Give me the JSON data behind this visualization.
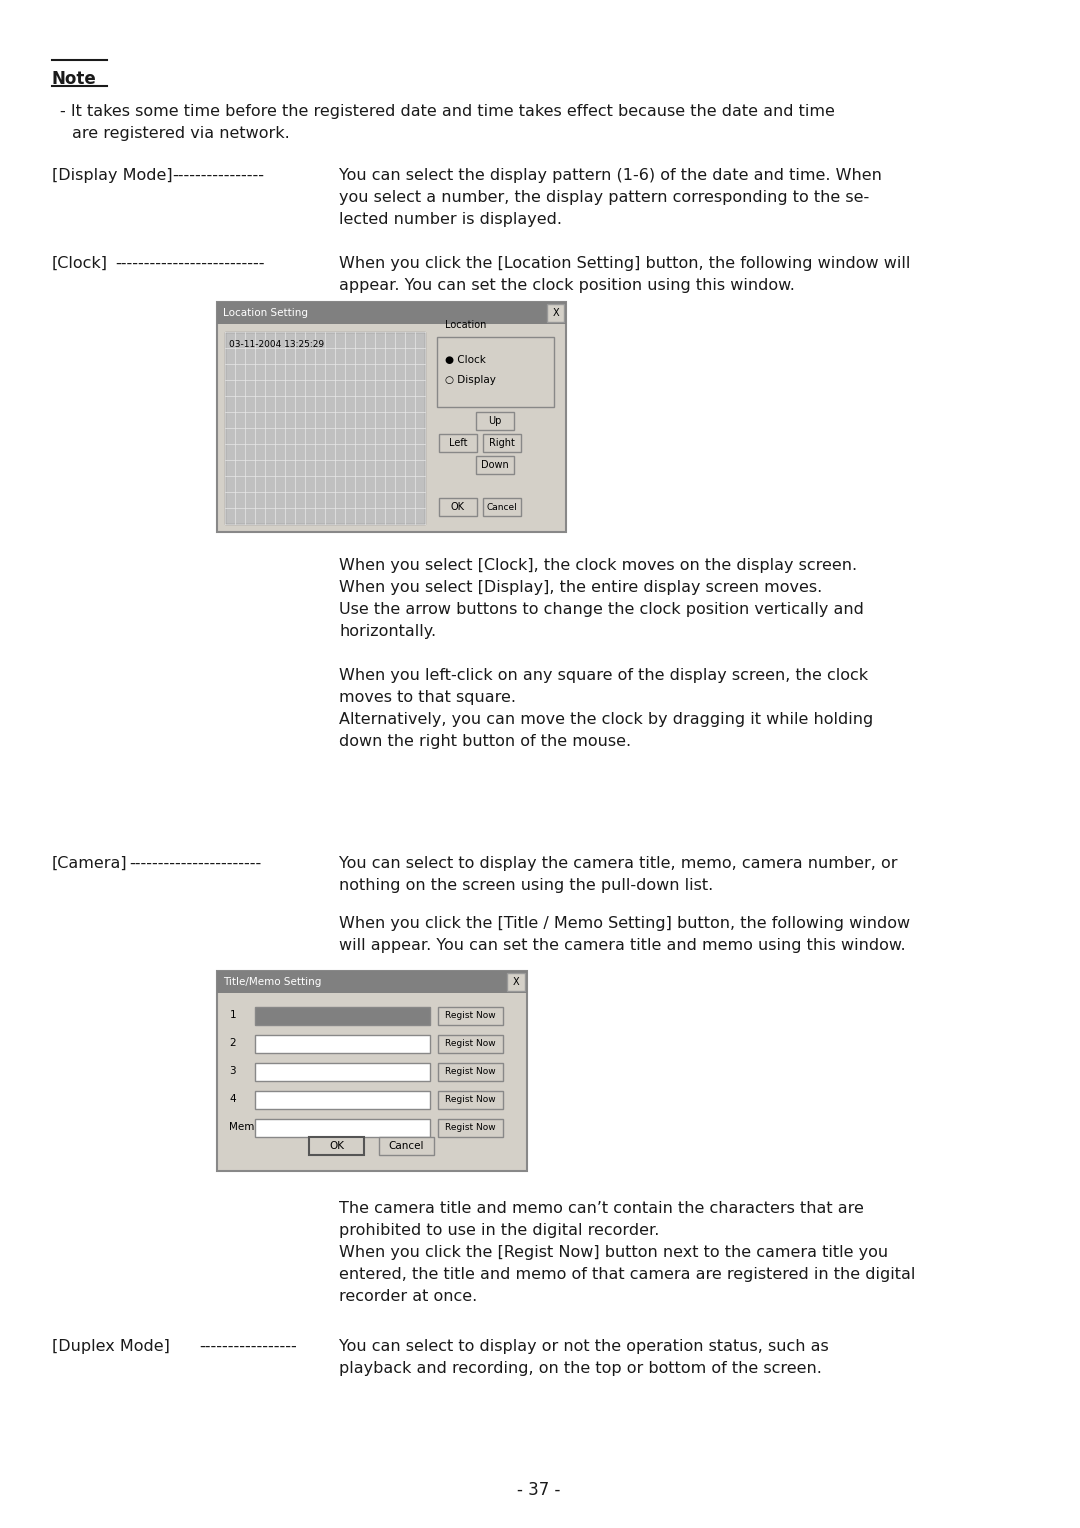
{
  "bg_color": "#ffffff",
  "text_color": "#1a1a1a",
  "page_number": "- 37 -",
  "note_title": "Note",
  "note_bullet": "- It takes some time before the registered date and time takes effect because the date and time\n  are registered via network.",
  "entries": [
    {
      "label": "[Display Mode]",
      "dashes": "----------------",
      "text": "You can select the display pattern (1-6) of the date and time. When\nyou select a number, the display pattern corresponding to the se-\nlected number is displayed."
    },
    {
      "label": "[Clock]",
      "dashes": "--------------------------",
      "text": "When you click the [Location Setting] button, the following window will\nappear. You can set the clock position using this window."
    },
    {
      "label": "[Camera]",
      "dashes": "-----------------------",
      "text": "You can select to display the camera title, memo, camera number, or\nnothing on the screen using the pull-down list."
    },
    {
      "label": "[Duplex Mode]",
      "dashes": "-----------------",
      "text": "You can select to display or not the operation status, such as\nplayback and recording, on the top or bottom of the screen."
    }
  ],
  "clock_body_texts": [
    "When you select [Clock], the clock moves on the display screen.",
    "When you select [Display], the entire display screen moves.",
    "Use the arrow buttons to change the clock position vertically and",
    "horizontally.",
    "",
    "When you left-click on any square of the display screen, the clock",
    "moves to that square.",
    "Alternatively, you can move the clock by dragging it while holding",
    "down the right button of the mouse."
  ],
  "camera_body_texts": [
    "When you click the [Title / Memo Setting] button, the following window",
    "will appear. You can set the camera title and memo using this window."
  ],
  "camera_after_texts": [
    "The camera title and memo can’t contain the characters that are",
    "prohibited to use in the digital recorder.",
    "When you click the [Regist Now] button next to the camera title you",
    "entered, the title and memo of that camera are registered in the digital",
    "recorder at once."
  ]
}
